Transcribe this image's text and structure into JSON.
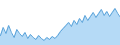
{
  "chart_data": {
    "type": "area",
    "x": [
      0,
      1,
      2,
      3,
      4,
      5,
      6,
      7,
      8,
      9,
      10,
      11,
      12,
      13,
      14,
      15,
      16,
      17,
      18,
      19,
      20,
      21,
      22,
      23,
      24,
      25,
      26,
      27,
      28,
      29,
      30,
      31,
      32,
      33,
      34,
      35,
      36,
      37,
      38,
      39,
      40,
      41,
      42,
      43,
      44
    ],
    "values": [
      30,
      38,
      32,
      40,
      33,
      28,
      36,
      32,
      29,
      33,
      27,
      31,
      28,
      26,
      30,
      27,
      25,
      28,
      26,
      29,
      27,
      30,
      34,
      37,
      40,
      43,
      39,
      45,
      41,
      47,
      43,
      50,
      45,
      49,
      53,
      48,
      52,
      56,
      50,
      54,
      49,
      53,
      57,
      52,
      48
    ],
    "colors": [
      "#5ba3d9",
      "#a8d4f5"
    ],
    "xlim": [
      0,
      44
    ],
    "ylim": [
      20,
      65
    ],
    "tick_labels": false,
    "grid": false
  }
}
